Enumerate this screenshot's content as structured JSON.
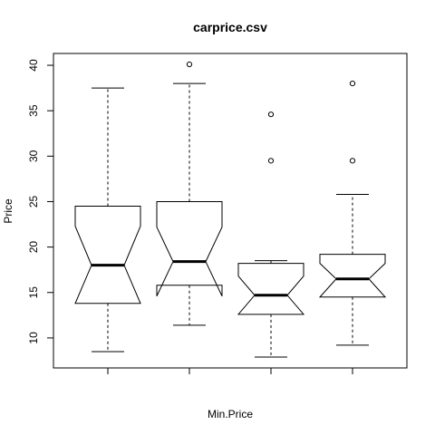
{
  "chart_data": {
    "type": "boxplot",
    "title": "carprice.csv",
    "xlabel": "Min.Price",
    "ylabel": "Price",
    "ylim": [
      6.7,
      41.3
    ],
    "y_ticks": [
      10,
      15,
      20,
      25,
      30,
      35,
      40
    ],
    "notched": true,
    "grid": false,
    "boxes": [
      {
        "whisker_low": 8.5,
        "q1": 13.8,
        "median": 18.0,
        "q3": 24.5,
        "whisker_high": 37.5,
        "notch_low": 13.8,
        "notch_high": 22.3,
        "outliers": []
      },
      {
        "whisker_low": 11.4,
        "q1": 15.8,
        "median": 18.4,
        "q3": 25.0,
        "whisker_high": 38.0,
        "notch_low": 14.6,
        "notch_high": 22.2,
        "outliers": [
          40.1
        ]
      },
      {
        "whisker_low": 7.9,
        "q1": 12.6,
        "median": 14.7,
        "q3": 18.2,
        "whisker_high": 18.5,
        "notch_low": 12.6,
        "notch_high": 16.8,
        "outliers": [
          29.5,
          34.6
        ]
      },
      {
        "whisker_low": 9.2,
        "q1": 14.5,
        "median": 16.5,
        "q3": 19.2,
        "whisker_high": 25.8,
        "notch_low": 14.5,
        "notch_high": 18.2,
        "outliers": [
          29.5,
          38.0
        ]
      }
    ]
  }
}
